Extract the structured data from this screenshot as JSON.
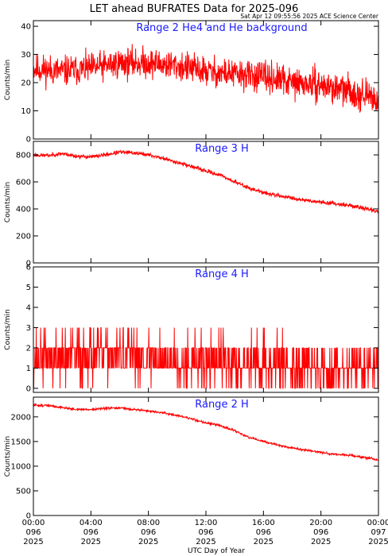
{
  "title": "LET ahead BUFRATES Data for 2025-096",
  "timestamp": "Sat Apr 12 09:55:56 2025 ACE Science Center",
  "xlabel": "UTC Day of Year",
  "colors": {
    "series": "#ff0000",
    "panel_title": "#1a1aff",
    "axes": "#000000"
  },
  "chart_data": [
    {
      "type": "line",
      "title": "Range 2 He4 and He background",
      "ylabel": "Counts/min",
      "ylim": [
        0,
        42
      ],
      "yticks": [
        0,
        10,
        20,
        30,
        40
      ],
      "series": [
        {
          "x": [
            0,
            2,
            4,
            6,
            8,
            10,
            12,
            14,
            16,
            18,
            20,
            22,
            24
          ],
          "values": [
            25,
            24,
            25,
            27,
            27,
            26,
            24,
            23,
            22,
            20,
            19,
            17,
            14
          ]
        }
      ]
    },
    {
      "type": "line",
      "title": "Range 3 H",
      "ylabel": "Counts/min",
      "ylim": [
        0,
        900
      ],
      "yticks": [
        0,
        200,
        400,
        600,
        800
      ],
      "series": [
        {
          "x": [
            0,
            1,
            2,
            3,
            4,
            5,
            6,
            7,
            8,
            9,
            10,
            11,
            12,
            13,
            14,
            15,
            16,
            17,
            18,
            19,
            20,
            21,
            22,
            23,
            24
          ],
          "values": [
            800,
            795,
            810,
            790,
            785,
            800,
            820,
            815,
            800,
            775,
            745,
            715,
            680,
            650,
            600,
            555,
            520,
            500,
            480,
            465,
            450,
            440,
            425,
            405,
            380
          ]
        }
      ]
    },
    {
      "type": "line",
      "title": "Range 4 H",
      "ylabel": "Counts/min",
      "ylim": [
        -0.2,
        6
      ],
      "yticks": [
        0,
        1,
        2,
        3,
        4,
        5,
        6
      ],
      "series": [
        {
          "x": [
            0,
            2,
            4,
            6,
            8,
            10,
            12,
            14,
            16,
            18,
            20,
            22,
            24
          ],
          "values": [
            1.5,
            1.5,
            1.6,
            1.7,
            1.5,
            1.4,
            1.3,
            1.2,
            1.2,
            1.1,
            1.0,
            1.0,
            1.1
          ]
        }
      ]
    },
    {
      "type": "line",
      "title": "Range 2 H",
      "ylabel": "Counts/min",
      "ylim": [
        0,
        2400
      ],
      "yticks": [
        0,
        500,
        1000,
        1500,
        2000
      ],
      "series": [
        {
          "x": [
            0,
            1,
            2,
            3,
            4,
            5,
            6,
            7,
            8,
            9,
            10,
            11,
            12,
            13,
            14,
            15,
            16,
            17,
            18,
            19,
            20,
            21,
            22,
            23,
            24
          ],
          "values": [
            2240,
            2230,
            2190,
            2150,
            2150,
            2170,
            2180,
            2150,
            2120,
            2080,
            2030,
            1960,
            1880,
            1820,
            1720,
            1580,
            1500,
            1430,
            1370,
            1320,
            1280,
            1240,
            1220,
            1180,
            1130
          ]
        }
      ]
    }
  ],
  "xaxis": {
    "xlim": [
      0,
      24
    ],
    "tick_hours": [
      0,
      4,
      8,
      12,
      16,
      20,
      24
    ],
    "tick_labels": [
      [
        "00:00",
        "096",
        "2025"
      ],
      [
        "04:00",
        "096",
        "2025"
      ],
      [
        "08:00",
        "096",
        "2025"
      ],
      [
        "12:00",
        "096",
        "2025"
      ],
      [
        "16:00",
        "096",
        "2025"
      ],
      [
        "20:00",
        "096",
        "2025"
      ],
      [
        "00:00",
        "097",
        "2025"
      ]
    ]
  }
}
